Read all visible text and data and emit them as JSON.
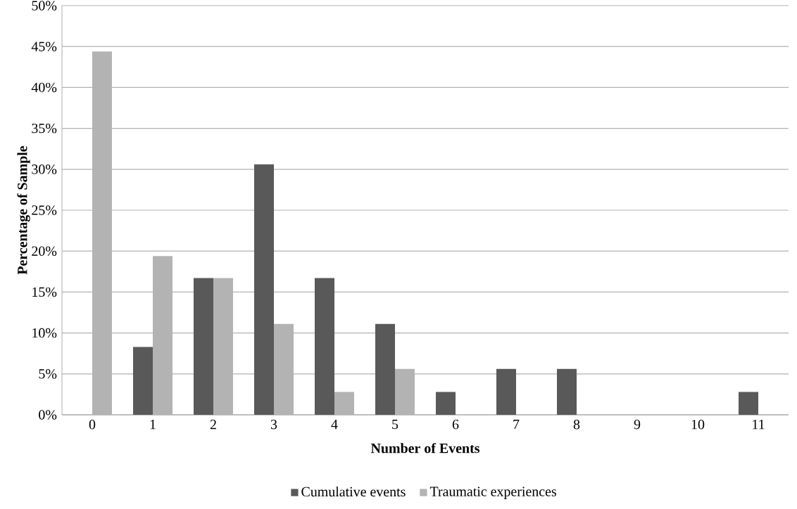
{
  "chart_data": {
    "type": "bar",
    "xlabel": "Number of Events",
    "ylabel": "Percentage of Sample",
    "categories": [
      "0",
      "1",
      "2",
      "3",
      "4",
      "5",
      "6",
      "7",
      "8",
      "9",
      "10",
      "11"
    ],
    "series": [
      {
        "name": "Cumulative events",
        "color": "#595959",
        "values": [
          0,
          8.3,
          16.7,
          30.6,
          16.7,
          11.1,
          2.8,
          5.6,
          5.6,
          0,
          0,
          2.8
        ]
      },
      {
        "name": "Traumatic experiences",
        "color": "#b3b3b3",
        "values": [
          44.4,
          19.4,
          16.7,
          11.1,
          2.8,
          5.6,
          0,
          0,
          0,
          0,
          0,
          0
        ]
      }
    ],
    "ylim": [
      0,
      50
    ],
    "yticks": [
      {
        "value": 0,
        "label": "0%"
      },
      {
        "value": 5,
        "label": "5%"
      },
      {
        "value": 10,
        "label": "10%"
      },
      {
        "value": 15,
        "label": "15%"
      },
      {
        "value": 20,
        "label": "20%"
      },
      {
        "value": 25,
        "label": "25%"
      },
      {
        "value": 30,
        "label": "30%"
      },
      {
        "value": 35,
        "label": "35%"
      },
      {
        "value": 40,
        "label": "40%"
      },
      {
        "value": 45,
        "label": "45%"
      },
      {
        "value": 50,
        "label": "50%"
      }
    ],
    "grid": "y",
    "legend": "bottom"
  }
}
